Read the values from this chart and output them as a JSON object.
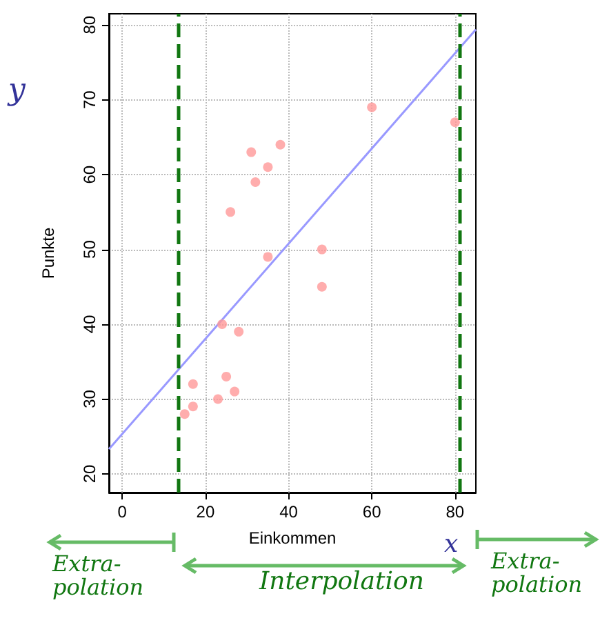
{
  "chart_data": {
    "type": "scatter",
    "xlabel": "Einkommen",
    "ylabel": "Punkte",
    "xlim": [
      -3.2,
      85
    ],
    "ylim": [
      17.5,
      81.5
    ],
    "xticks": [
      0,
      20,
      40,
      60,
      80
    ],
    "yticks": [
      20,
      30,
      40,
      50,
      60,
      70,
      80
    ],
    "grid": true,
    "marker": "circle",
    "series": [
      {
        "color": "#ff9999",
        "x": [
          60,
          80,
          31,
          38,
          35,
          32,
          26,
          35,
          48,
          48,
          24,
          28,
          17,
          25,
          27,
          23,
          17,
          15
        ],
        "values": [
          69,
          67,
          63,
          64,
          61,
          59,
          55,
          49,
          50,
          45,
          40,
          39,
          32,
          33,
          31,
          30,
          29,
          28
        ]
      },
      {
        "type": "line",
        "color": "#9999ff",
        "marker": "none",
        "x": [
          -3.2,
          85
        ],
        "values": [
          23.3,
          79.4
        ]
      }
    ],
    "ref_lines": [
      {
        "axis": "x",
        "value": 13.5,
        "color": "#117711",
        "line_style": "dashed"
      },
      {
        "axis": "x",
        "value": 81,
        "color": "#117711",
        "line_style": "dashed"
      }
    ],
    "annotations": [
      "y",
      "x",
      "Extra-\npolation",
      "Interpolation",
      "Extra-\npolation"
    ]
  }
}
